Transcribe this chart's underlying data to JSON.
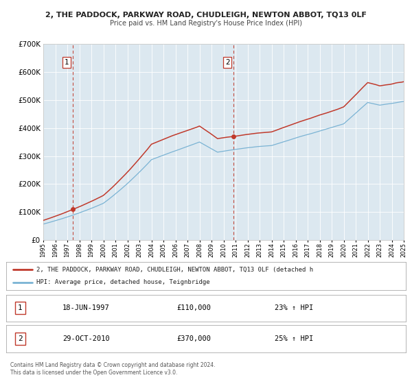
{
  "title": "2, THE PADDOCK, PARKWAY ROAD, CHUDLEIGH, NEWTON ABBOT, TQ13 0LF",
  "subtitle": "Price paid vs. HM Land Registry's House Price Index (HPI)",
  "ylim": [
    0,
    700000
  ],
  "yticks": [
    0,
    100000,
    200000,
    300000,
    400000,
    500000,
    600000,
    700000
  ],
  "x_start_year": 1995,
  "x_end_year": 2025,
  "hpi_line_color": "#7ab3d4",
  "price_line_color": "#c0392b",
  "sale1_date": "18-JUN-1997",
  "sale1_price": 110000,
  "sale1_label": "23% ↑ HPI",
  "sale1_x": 1997.46,
  "sale2_date": "29-OCT-2010",
  "sale2_price": 370000,
  "sale2_label": "25% ↑ HPI",
  "sale2_x": 2010.83,
  "legend_line1": "2, THE PADDOCK, PARKWAY ROAD, CHUDLEIGH, NEWTON ABBOT, TQ13 0LF (detached h",
  "legend_line2": "HPI: Average price, detached house, Teignbridge",
  "footer1": "Contains HM Land Registry data © Crown copyright and database right 2024.",
  "footer2": "This data is licensed under the Open Government Licence v3.0.",
  "plot_bg_color": "#dce8f0"
}
